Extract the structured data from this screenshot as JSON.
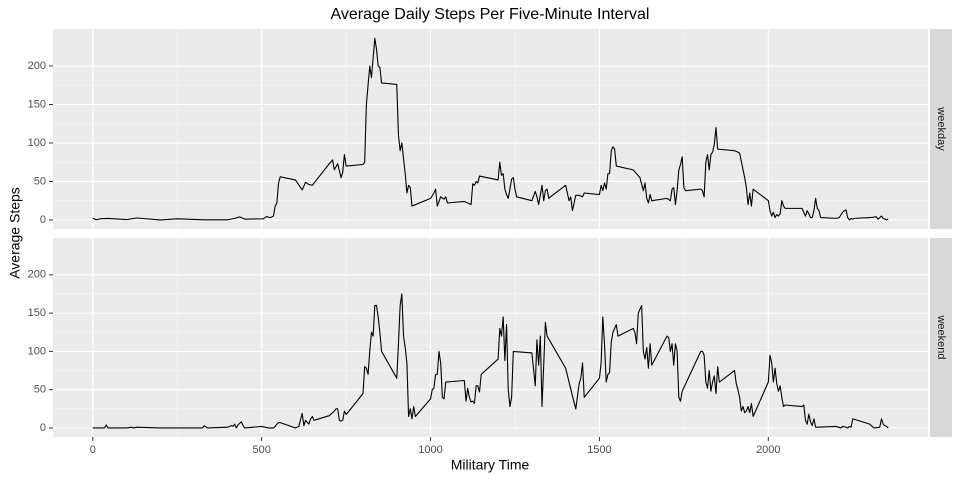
{
  "chart_data": {
    "type": "line",
    "title": "Average Daily Steps Per Five-Minute Interval",
    "x_label": "Military Time",
    "y_label": "Average Steps",
    "xlim": [
      -117.75,
      2472.75
    ],
    "xticks": [
      0,
      500,
      1000,
      1500,
      2000
    ],
    "ylim": [
      -11.8,
      248.1
    ],
    "yticks": [
      0,
      50,
      100,
      150,
      200
    ],
    "grid": true,
    "color": "#000000",
    "panels": [
      {
        "label": "weekday",
        "x": [
          0,
          10,
          25,
          45,
          100,
          130,
          200,
          250,
          330,
          400,
          420,
          435,
          450,
          505,
          515,
          525,
          535,
          540,
          545,
          550,
          555,
          600,
          620,
          630,
          640,
          650,
          700,
          710,
          715,
          725,
          735,
          740,
          745,
          750,
          800,
          805,
          810,
          815,
          820,
          825,
          830,
          835,
          840,
          845,
          850,
          855,
          900,
          905,
          910,
          915,
          920,
          925,
          930,
          935,
          940,
          945,
          1000,
          1010,
          1015,
          1020,
          1030,
          1040,
          1045,
          1050,
          1100,
          1120,
          1125,
          1130,
          1135,
          1140,
          1145,
          1200,
          1205,
          1210,
          1215,
          1220,
          1225,
          1230,
          1235,
          1240,
          1245,
          1250,
          1255,
          1300,
          1310,
          1315,
          1320,
          1330,
          1335,
          1340,
          1345,
          1350,
          1355,
          1400,
          1405,
          1410,
          1415,
          1420,
          1430,
          1440,
          1450,
          1455,
          1500,
          1505,
          1510,
          1515,
          1520,
          1525,
          1530,
          1535,
          1540,
          1545,
          1550,
          1600,
          1620,
          1630,
          1635,
          1640,
          1645,
          1650,
          1655,
          1700,
          1710,
          1715,
          1720,
          1725,
          1730,
          1735,
          1740,
          1745,
          1750,
          1755,
          1800,
          1805,
          1810,
          1815,
          1820,
          1825,
          1830,
          1835,
          1840,
          1845,
          1850,
          1900,
          1915,
          1930,
          1935,
          1940,
          1945,
          1950,
          1955,
          2000,
          2005,
          2010,
          2015,
          2020,
          2025,
          2030,
          2035,
          2040,
          2045,
          2050,
          2100,
          2110,
          2115,
          2120,
          2125,
          2130,
          2135,
          2140,
          2145,
          2150,
          2155,
          2200,
          2210,
          2220,
          2225,
          2230,
          2235,
          2240,
          2245,
          2250,
          2255,
          2300,
          2320,
          2325,
          2330,
          2335,
          2340,
          2345,
          2350,
          2355
        ],
        "values": [
          2.3,
          0.2,
          1.6,
          1.9,
          0.4,
          2.5,
          0,
          1.5,
          0.2,
          0.2,
          2,
          4,
          1,
          1.5,
          4.5,
          2.8,
          5,
          18,
          22,
          48,
          56,
          52,
          39,
          49,
          46,
          45,
          73,
          78,
          65,
          73,
          55,
          62,
          85,
          70,
          72,
          75,
          150,
          175,
          200,
          185,
          210,
          236,
          222,
          200,
          198,
          178,
          176,
          110,
          90,
          100,
          80,
          60,
          35,
          45,
          42,
          18,
          28,
          35,
          40,
          18,
          30,
          27,
          30,
          22,
          24,
          20,
          47,
          45,
          50,
          48,
          57,
          52,
          75,
          58,
          60,
          40,
          33,
          28,
          40,
          53,
          55,
          40,
          30,
          25,
          37,
          30,
          20,
          45,
          25,
          38,
          40,
          28,
          30,
          45,
          35,
          25,
          30,
          12,
          32,
          32,
          30,
          35,
          33,
          45,
          38,
          48,
          40,
          60,
          60,
          90,
          95,
          92,
          70,
          65,
          55,
          38,
          48,
          28,
          22,
          33,
          25,
          28,
          25,
          40,
          42,
          20,
          38,
          65,
          72,
          82,
          42,
          38,
          40,
          38,
          30,
          75,
          85,
          65,
          85,
          88,
          98,
          120,
          92,
          90,
          87,
          55,
          42,
          20,
          35,
          18,
          40,
          25,
          12,
          5,
          10,
          3,
          7,
          5,
          8,
          25,
          18,
          15,
          15,
          5,
          12,
          8,
          3,
          3,
          12,
          28,
          15,
          12,
          3,
          2,
          3,
          10,
          12,
          13,
          3,
          0,
          2,
          1,
          2,
          3,
          4,
          1,
          3,
          5,
          2,
          1,
          0,
          1
        ]
      },
      {
        "label": "weekend",
        "x": [
          0,
          35,
          40,
          45,
          100,
          115,
          120,
          130,
          200,
          300,
          325,
          330,
          340,
          400,
          410,
          415,
          420,
          425,
          430,
          440,
          445,
          450,
          500,
          520,
          535,
          540,
          545,
          550,
          555,
          600,
          610,
          620,
          625,
          630,
          640,
          645,
          650,
          655,
          700,
          715,
          720,
          725,
          730,
          735,
          740,
          745,
          750,
          755,
          800,
          805,
          810,
          815,
          820,
          825,
          830,
          835,
          840,
          845,
          850,
          855,
          900,
          905,
          910,
          915,
          920,
          925,
          930,
          935,
          940,
          945,
          950,
          955,
          1000,
          1005,
          1010,
          1015,
          1020,
          1025,
          1030,
          1035,
          1040,
          1045,
          1100,
          1105,
          1110,
          1115,
          1120,
          1125,
          1130,
          1135,
          1140,
          1145,
          1150,
          1200,
          1205,
          1210,
          1215,
          1220,
          1225,
          1230,
          1235,
          1240,
          1245,
          1300,
          1310,
          1315,
          1320,
          1325,
          1330,
          1335,
          1340,
          1345,
          1400,
          1410,
          1420,
          1430,
          1440,
          1445,
          1450,
          1455,
          1500,
          1505,
          1510,
          1515,
          1520,
          1525,
          1530,
          1535,
          1540,
          1545,
          1550,
          1555,
          1600,
          1605,
          1610,
          1615,
          1620,
          1625,
          1630,
          1635,
          1640,
          1645,
          1650,
          1655,
          1700,
          1705,
          1710,
          1715,
          1720,
          1725,
          1730,
          1735,
          1740,
          1745,
          1800,
          1805,
          1810,
          1815,
          1820,
          1825,
          1830,
          1835,
          1840,
          1845,
          1850,
          1855,
          1900,
          1905,
          1910,
          1915,
          1920,
          1925,
          1930,
          1935,
          1940,
          1945,
          1950,
          1955,
          2000,
          2005,
          2010,
          2015,
          2020,
          2025,
          2030,
          2035,
          2040,
          2045,
          2050,
          2100,
          2105,
          2110,
          2115,
          2120,
          2125,
          2130,
          2135,
          2140,
          2145,
          2200,
          2215,
          2220,
          2230,
          2235,
          2240,
          2245,
          2250,
          2300,
          2310,
          2315,
          2330,
          2335,
          2340,
          2345,
          2350,
          2355
        ],
        "values": [
          0,
          0,
          4,
          0,
          0,
          1,
          0,
          1,
          0,
          0,
          0,
          3,
          0,
          1,
          3,
          2,
          5,
          0,
          4,
          8,
          3,
          0,
          2,
          0,
          0,
          2,
          5,
          7,
          7,
          0,
          2,
          19,
          3,
          10,
          5,
          12,
          15,
          10,
          16,
          22,
          25,
          25,
          10,
          9,
          10,
          22,
          18,
          20,
          45,
          80,
          78,
          70,
          100,
          125,
          120,
          160,
          160,
          145,
          125,
          100,
          65,
          110,
          160,
          175,
          120,
          105,
          85,
          15,
          25,
          12,
          28,
          15,
          38,
          50,
          52,
          70,
          70,
          100,
          85,
          40,
          38,
          60,
          62,
          35,
          52,
          40,
          34,
          35,
          32,
          55,
          55,
          47,
          70,
          90,
          130,
          120,
          145,
          88,
          135,
          50,
          28,
          40,
          100,
          98,
          55,
          115,
          82,
          120,
          28,
          82,
          138,
          120,
          78,
          60,
          42,
          25,
          58,
          65,
          85,
          40,
          65,
          85,
          145,
          110,
          60,
          70,
          72,
          112,
          125,
          130,
          135,
          120,
          130,
          125,
          110,
          150,
          155,
          160,
          100,
          90,
          105,
          78,
          110,
          82,
          120,
          118,
          100,
          110,
          82,
          110,
          100,
          40,
          35,
          48,
          100,
          100,
          95,
          60,
          52,
          75,
          48,
          60,
          68,
          45,
          80,
          60,
          75,
          58,
          50,
          40,
          22,
          28,
          20,
          22,
          28,
          20,
          32,
          15,
          60,
          95,
          85,
          60,
          78,
          58,
          48,
          55,
          40,
          28,
          30,
          28,
          30,
          10,
          5,
          18,
          8,
          3,
          12,
          1,
          1,
          2,
          0,
          2,
          1,
          0,
          2,
          1,
          12,
          5,
          1,
          0,
          1,
          12,
          5,
          3,
          2,
          0
        ]
      }
    ]
  }
}
